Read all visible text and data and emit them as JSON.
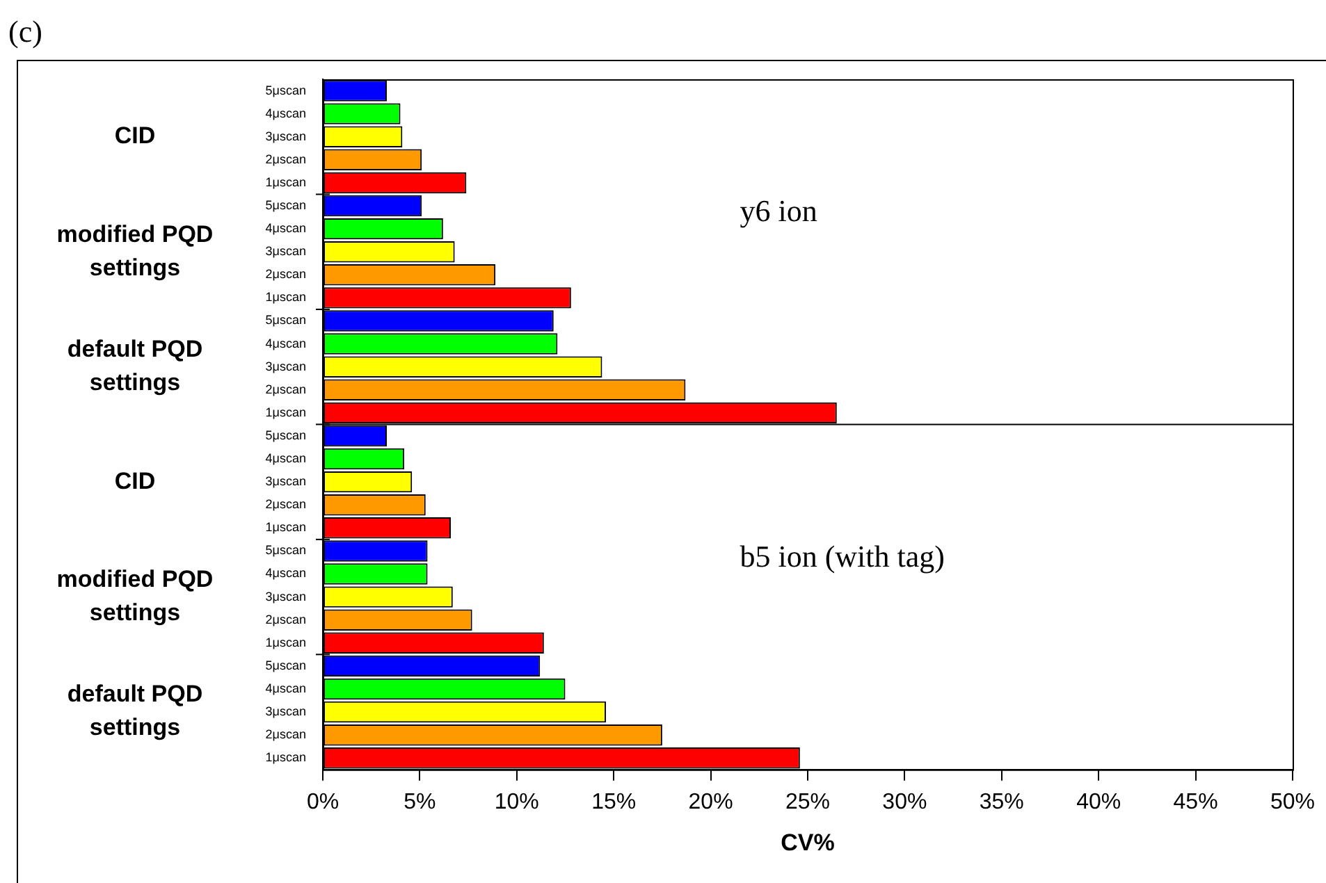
{
  "chart_data": {
    "type": "bar",
    "orientation": "horizontal",
    "title": "(c)",
    "xlabel": "CV%",
    "categories": [
      "5μscan",
      "4μscan",
      "3μscan",
      "2μscan",
      "1μscan",
      "5μscan",
      "4μscan",
      "3μscan",
      "2μscan",
      "1μscan",
      "5μscan",
      "4μscan",
      "3μscan",
      "2μscan",
      "1μscan",
      "5μscan",
      "4μscan",
      "3μscan",
      "2μscan",
      "1μscan",
      "5μscan",
      "4μscan",
      "3μscan",
      "2μscan",
      "1μscan",
      "5μscan",
      "4μscan",
      "3μscan",
      "2μscan",
      "1μscan"
    ],
    "values": [
      3.3,
      4.0,
      4.1,
      5.1,
      7.4,
      5.1,
      6.2,
      6.8,
      8.9,
      12.8,
      11.9,
      12.1,
      14.4,
      18.7,
      26.5,
      3.3,
      4.2,
      4.6,
      5.3,
      6.6,
      5.4,
      5.4,
      6.7,
      7.7,
      11.4,
      11.2,
      12.5,
      14.6,
      17.5,
      24.6
    ],
    "colors": [
      "#0000ff",
      "#00ff00",
      "#ffff00",
      "#ff9900",
      "#ff0000",
      "#0000ff",
      "#00ff00",
      "#ffff00",
      "#ff9900",
      "#ff0000",
      "#0000ff",
      "#00ff00",
      "#ffff00",
      "#ff9900",
      "#ff0000",
      "#0000ff",
      "#00ff00",
      "#ffff00",
      "#ff9900",
      "#ff0000",
      "#0000ff",
      "#00ff00",
      "#ffff00",
      "#ff9900",
      "#ff0000",
      "#0000ff",
      "#00ff00",
      "#ffff00",
      "#ff9900",
      "#ff0000"
    ],
    "xlim": [
      0,
      50
    ],
    "xticks": [
      {
        "value": 0,
        "label": "0%"
      },
      {
        "value": 5,
        "label": "5%"
      },
      {
        "value": 10,
        "label": "10%"
      },
      {
        "value": 15,
        "label": "15%"
      },
      {
        "value": 20,
        "label": "20%"
      },
      {
        "value": 25,
        "label": "25%"
      },
      {
        "value": 30,
        "label": "30%"
      },
      {
        "value": 35,
        "label": "35%"
      },
      {
        "value": 40,
        "label": "40%"
      },
      {
        "value": 45,
        "label": "45%"
      },
      {
        "value": 50,
        "label": "50%"
      }
    ],
    "annotations": [
      "CID",
      "modified PQD settings",
      "default PQD settings",
      "CID",
      "modified PQD settings",
      "default PQD settings",
      "y6 ion",
      "b5 ion (with tag)"
    ],
    "grid": false,
    "legend": false
  }
}
